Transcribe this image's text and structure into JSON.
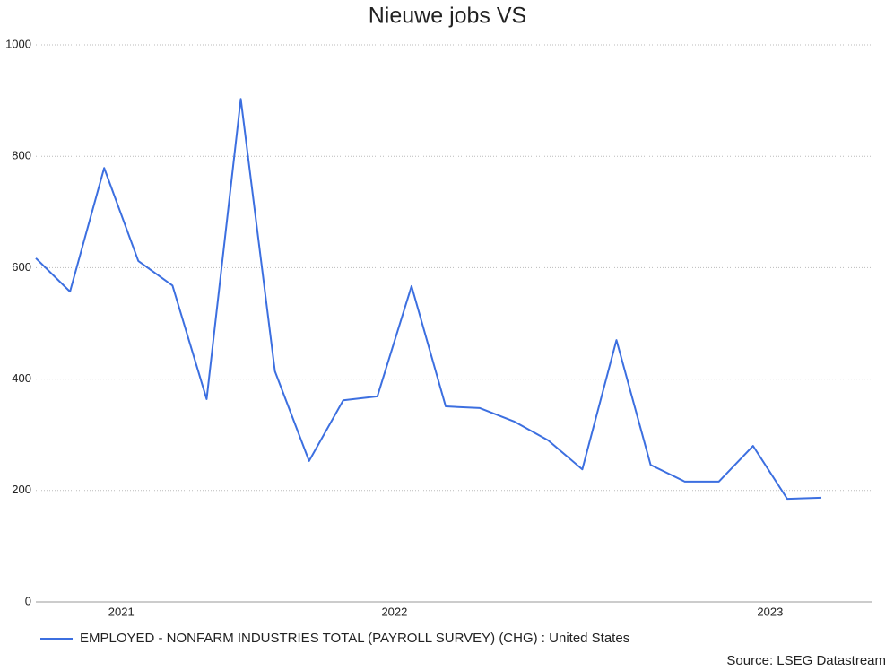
{
  "chart_data": {
    "type": "line",
    "title": "Nieuwe jobs VS",
    "source": "Source: LSEG Datastream",
    "categories": [
      null,
      null,
      "2021",
      null,
      null,
      null,
      null,
      null,
      null,
      null,
      "2022",
      null,
      null,
      null,
      null,
      null,
      null,
      null,
      null,
      null,
      null,
      "2023",
      null,
      null
    ],
    "series": [
      {
        "name": "EMPLOYED - NONFARM INDUSTRIES TOTAL (PAYROLL SURVEY) (CHG) : United States",
        "color": "#3c6fe0",
        "values": [
          617,
          557,
          779,
          612,
          568,
          364,
          903,
          414,
          253,
          362,
          369,
          567,
          351,
          348,
          324,
          290,
          238,
          470,
          246,
          216,
          216,
          280,
          185,
          187
        ]
      }
    ],
    "ylim": [
      0,
      1000
    ],
    "yticks": [
      0,
      200,
      400,
      600,
      800,
      1000
    ],
    "grid": true,
    "legend": "bottom"
  }
}
